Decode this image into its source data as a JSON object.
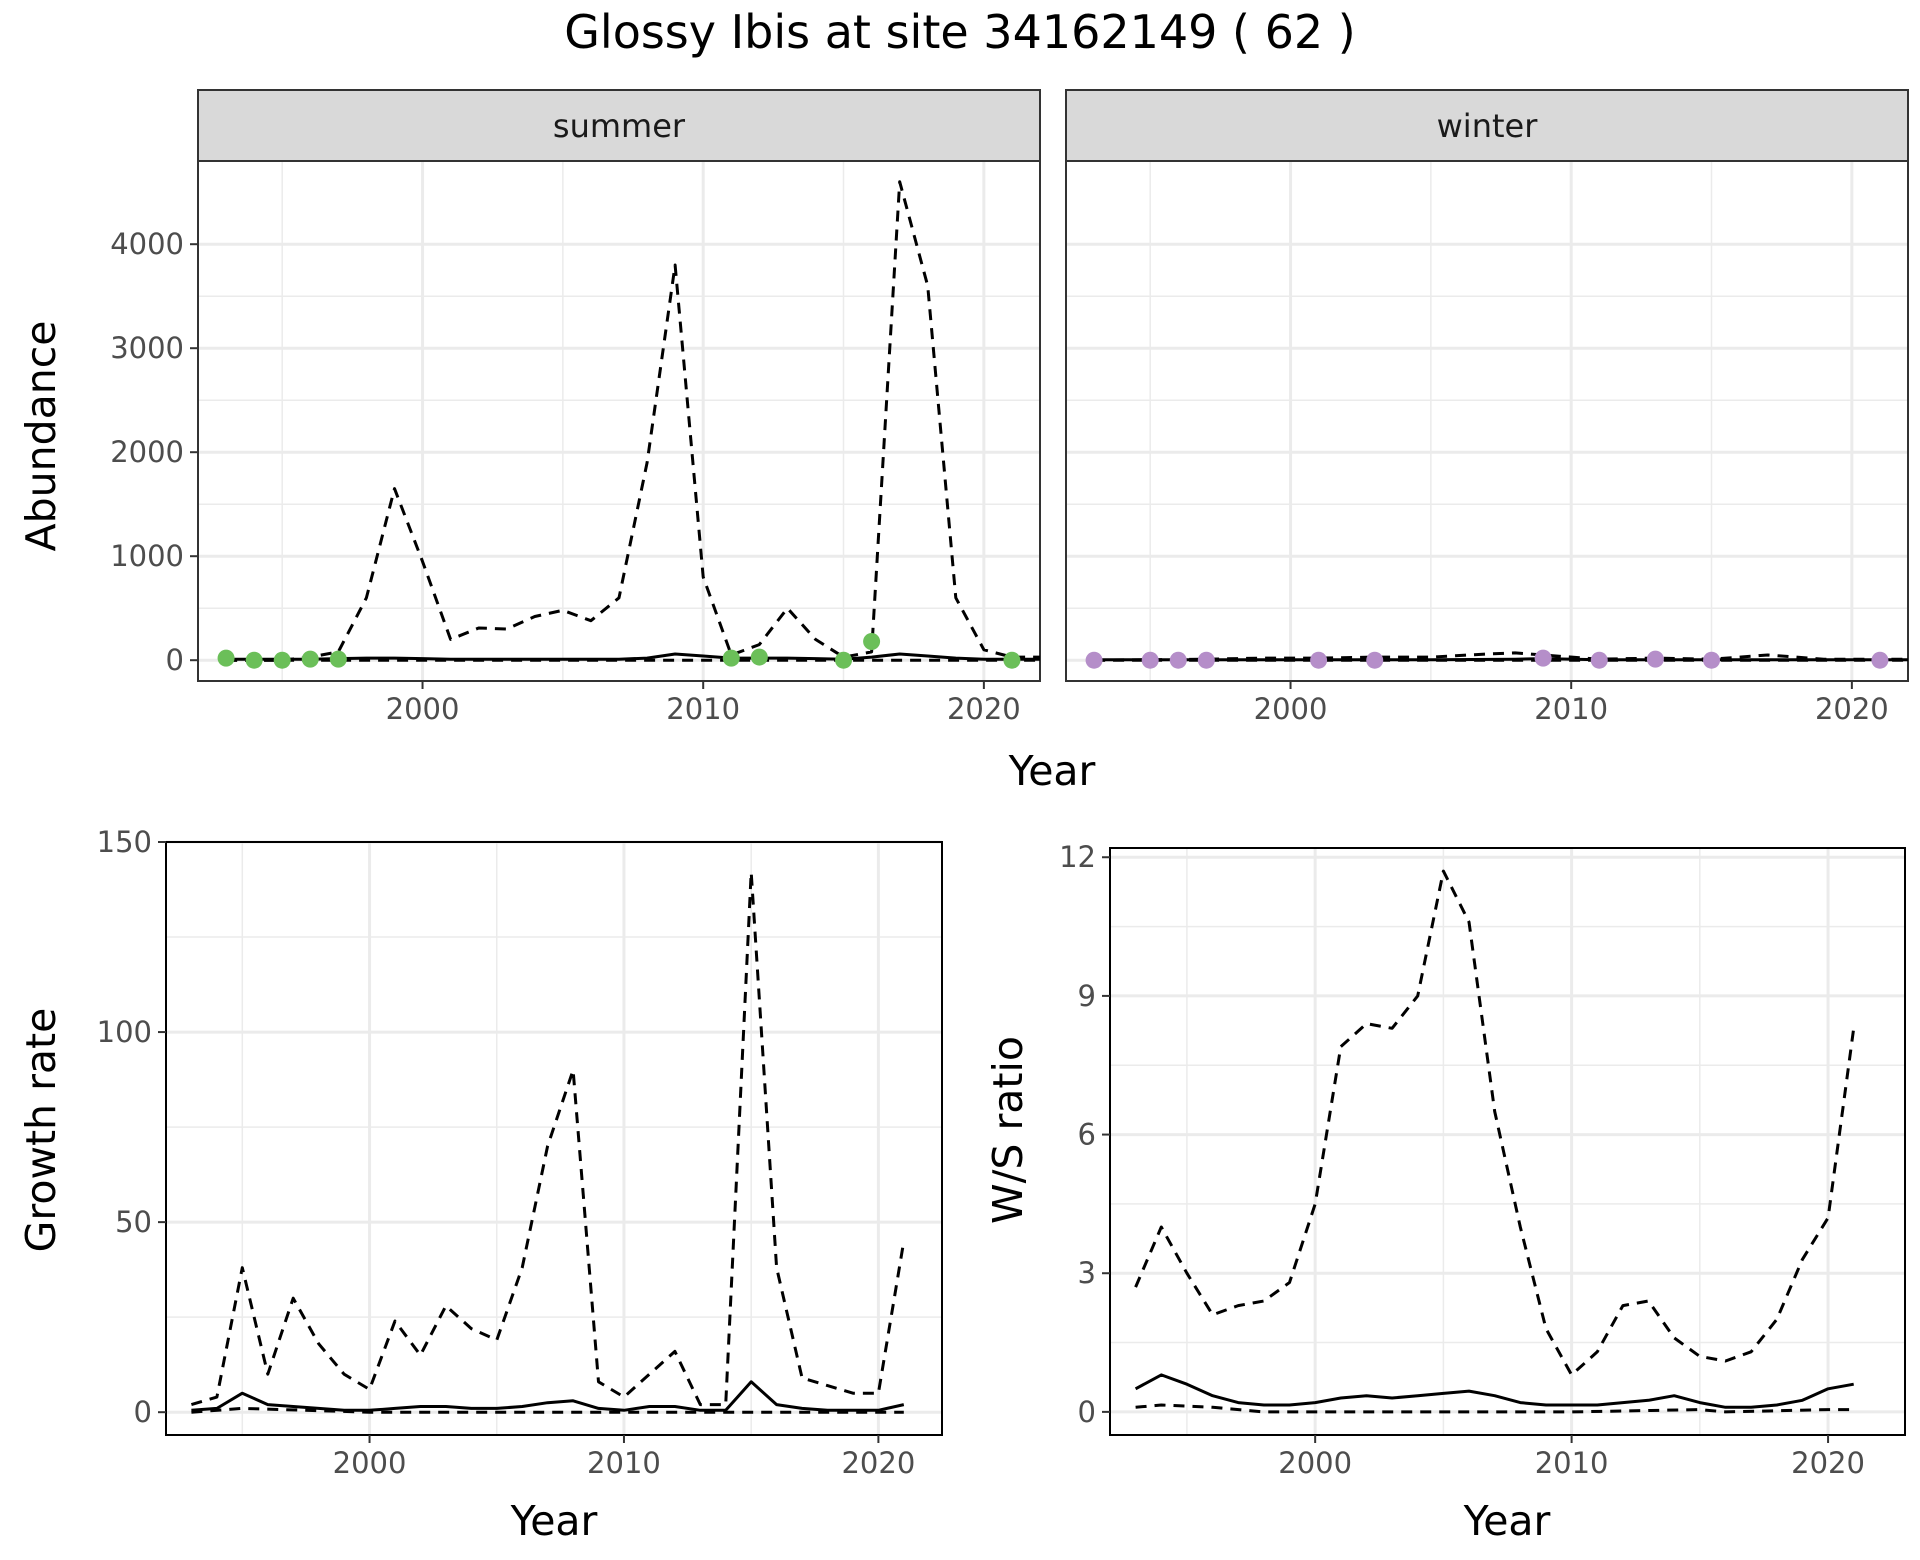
{
  "title": "Glossy Ibis at site 34162149 ( 62 )",
  "colors": {
    "summer_points": "#6bbf59",
    "winter_points": "#b58ec9",
    "lines": "#000000",
    "strip": "#d9d9d9",
    "grid": "#ebebeb"
  },
  "chart_data": [
    {
      "type": "line",
      "panel": "summer",
      "strip_label": "summer",
      "xlabel": "Year",
      "ylabel": "Abundance",
      "xlim": [
        1992,
        2022
      ],
      "ylim": [
        -200,
        4800
      ],
      "x_ticks": [
        2000,
        2010,
        2020
      ],
      "y_ticks": [
        0,
        1000,
        2000,
        3000,
        4000
      ],
      "grid": true,
      "series": [
        {
          "style": "dashed",
          "x": [
            1993,
            1994,
            1995,
            1996,
            1997,
            1998,
            1999,
            2000,
            2001,
            2002,
            2003,
            2004,
            2005,
            2006,
            2007,
            2008,
            2009,
            2010,
            2011,
            2012,
            2013,
            2014,
            2015,
            2016,
            2017,
            2018,
            2019,
            2020,
            2021,
            2022
          ],
          "values": [
            0,
            0,
            0,
            30,
            80,
            600,
            1650,
            950,
            200,
            310,
            300,
            420,
            480,
            380,
            600,
            1900,
            3800,
            800,
            50,
            150,
            500,
            200,
            30,
            80,
            4600,
            3600,
            600,
            100,
            30,
            30
          ]
        },
        {
          "style": "dashed",
          "x": [
            1993,
            1995,
            2000,
            2005,
            2010,
            2015,
            2020,
            2022
          ],
          "values": [
            0,
            0,
            0,
            0,
            0,
            0,
            0,
            0
          ]
        },
        {
          "style": "solid",
          "x": [
            1993,
            1994,
            1995,
            1996,
            1997,
            1998,
            1999,
            2000,
            2001,
            2002,
            2003,
            2004,
            2005,
            2006,
            2007,
            2008,
            2009,
            2010,
            2011,
            2012,
            2013,
            2014,
            2015,
            2016,
            2017,
            2018,
            2019,
            2020,
            2021,
            2022
          ],
          "values": [
            10,
            10,
            10,
            10,
            15,
            20,
            20,
            15,
            10,
            10,
            10,
            10,
            10,
            10,
            10,
            20,
            60,
            40,
            20,
            20,
            20,
            15,
            10,
            30,
            60,
            40,
            20,
            10,
            10,
            10
          ]
        },
        {
          "style": "points",
          "x": [
            1993,
            1994,
            1995,
            1996,
            1997,
            2011,
            2012,
            2015,
            2016,
            2021
          ],
          "values": [
            20,
            0,
            0,
            10,
            10,
            20,
            30,
            0,
            180,
            0
          ]
        }
      ]
    },
    {
      "type": "line",
      "panel": "winter",
      "strip_label": "winter",
      "xlabel": "Year",
      "ylabel": "",
      "xlim": [
        1992,
        2022
      ],
      "ylim": [
        -200,
        4800
      ],
      "x_ticks": [
        2000,
        2010,
        2020
      ],
      "grid": true,
      "series": [
        {
          "style": "dashed",
          "x": [
            1993,
            1995,
            1997,
            1999,
            2001,
            2003,
            2005,
            2007,
            2008,
            2009,
            2011,
            2013,
            2015,
            2017,
            2019,
            2021,
            2022
          ],
          "values": [
            0,
            5,
            10,
            20,
            20,
            30,
            30,
            60,
            70,
            50,
            10,
            20,
            10,
            50,
            10,
            10,
            10
          ]
        },
        {
          "style": "dashed",
          "x": [
            1993,
            2000,
            2010,
            2022
          ],
          "values": [
            0,
            0,
            0,
            0
          ]
        },
        {
          "style": "solid",
          "x": [
            1993,
            1996,
            1999,
            2002,
            2005,
            2008,
            2009,
            2011,
            2014,
            2017,
            2020,
            2022
          ],
          "values": [
            5,
            5,
            5,
            5,
            5,
            10,
            15,
            5,
            5,
            5,
            5,
            5
          ]
        },
        {
          "style": "points",
          "x": [
            1993,
            1995,
            1996,
            1997,
            2001,
            2003,
            2009,
            2011,
            2013,
            2015,
            2021
          ],
          "values": [
            0,
            0,
            0,
            0,
            0,
            0,
            20,
            0,
            10,
            0,
            0
          ]
        }
      ]
    },
    {
      "type": "line",
      "panel": "growth",
      "xlabel": "Year",
      "ylabel": "Growth rate",
      "xlim": [
        1992,
        2022.5
      ],
      "ylim": [
        -6,
        150
      ],
      "x_ticks": [
        2000,
        2010,
        2020
      ],
      "y_ticks": [
        0,
        50,
        100,
        150
      ],
      "grid": true,
      "series": [
        {
          "style": "dashed",
          "x": [
            1993,
            1994,
            1995,
            1996,
            1997,
            1998,
            1999,
            2000,
            2001,
            2002,
            2003,
            2004,
            2005,
            2006,
            2007,
            2008,
            2009,
            2010,
            2011,
            2012,
            2013,
            2014,
            2015,
            2016,
            2017,
            2018,
            2019,
            2020,
            2021
          ],
          "values": [
            2,
            4,
            38,
            10,
            30,
            18,
            10,
            6,
            24,
            15,
            28,
            22,
            19,
            38,
            70,
            90,
            8,
            4,
            10,
            16,
            2,
            2,
            142,
            38,
            9,
            7,
            5,
            5,
            45
          ]
        },
        {
          "style": "dashed",
          "x": [
            1993,
            1995,
            2000,
            2005,
            2010,
            2015,
            2020,
            2021
          ],
          "values": [
            0,
            1,
            0,
            0,
            0,
            0,
            0,
            0
          ]
        },
        {
          "style": "solid",
          "x": [
            1993,
            1994,
            1995,
            1996,
            1997,
            1998,
            1999,
            2000,
            2001,
            2002,
            2003,
            2004,
            2005,
            2006,
            2007,
            2008,
            2009,
            2010,
            2011,
            2012,
            2013,
            2014,
            2015,
            2016,
            2017,
            2018,
            2019,
            2020,
            2021
          ],
          "values": [
            0.5,
            1,
            5,
            2,
            1.5,
            1,
            0.5,
            0.5,
            1,
            1.5,
            1.5,
            1,
            1,
            1.5,
            2.5,
            3,
            1,
            0.5,
            1.5,
            1.5,
            0.5,
            0.5,
            8,
            2,
            1,
            0.5,
            0.5,
            0.5,
            2
          ]
        }
      ]
    },
    {
      "type": "line",
      "panel": "ratio",
      "xlabel": "Year",
      "ylabel": "W/S ratio",
      "xlim": [
        1992,
        2023
      ],
      "ylim": [
        -0.5,
        12.2
      ],
      "x_ticks": [
        2000,
        2010,
        2020
      ],
      "y_ticks": [
        0,
        3,
        6,
        9,
        12
      ],
      "grid": true,
      "series": [
        {
          "style": "dashed",
          "x": [
            1993,
            1994,
            1995,
            1996,
            1997,
            1998,
            1999,
            2000,
            2001,
            2002,
            2003,
            2004,
            2005,
            2006,
            2007,
            2008,
            2009,
            2010,
            2011,
            2012,
            2013,
            2014,
            2015,
            2016,
            2017,
            2018,
            2019,
            2020,
            2021
          ],
          "values": [
            2.7,
            4.0,
            3.0,
            2.1,
            2.3,
            2.4,
            2.8,
            4.5,
            7.9,
            8.4,
            8.3,
            9.0,
            11.7,
            10.6,
            6.5,
            4.0,
            1.8,
            0.8,
            1.3,
            2.3,
            2.4,
            1.6,
            1.2,
            1.1,
            1.3,
            2.0,
            3.3,
            4.2,
            8.3
          ]
        },
        {
          "style": "dashed",
          "x": [
            1993,
            1994,
            1996,
            1998,
            2000,
            2005,
            2010,
            2015,
            2016,
            2020,
            2021
          ],
          "values": [
            0.1,
            0.15,
            0.1,
            0.0,
            0.0,
            0.0,
            0.0,
            0.05,
            0.0,
            0.05,
            0.05
          ]
        },
        {
          "style": "solid",
          "x": [
            1993,
            1994,
            1995,
            1996,
            1997,
            1998,
            1999,
            2000,
            2001,
            2002,
            2003,
            2004,
            2005,
            2006,
            2007,
            2008,
            2009,
            2010,
            2011,
            2012,
            2013,
            2014,
            2015,
            2016,
            2017,
            2018,
            2019,
            2020,
            2021
          ],
          "values": [
            0.5,
            0.8,
            0.6,
            0.35,
            0.2,
            0.15,
            0.15,
            0.2,
            0.3,
            0.35,
            0.3,
            0.35,
            0.4,
            0.45,
            0.35,
            0.2,
            0.15,
            0.15,
            0.15,
            0.2,
            0.25,
            0.35,
            0.2,
            0.1,
            0.1,
            0.15,
            0.25,
            0.5,
            0.6
          ]
        }
      ]
    }
  ]
}
